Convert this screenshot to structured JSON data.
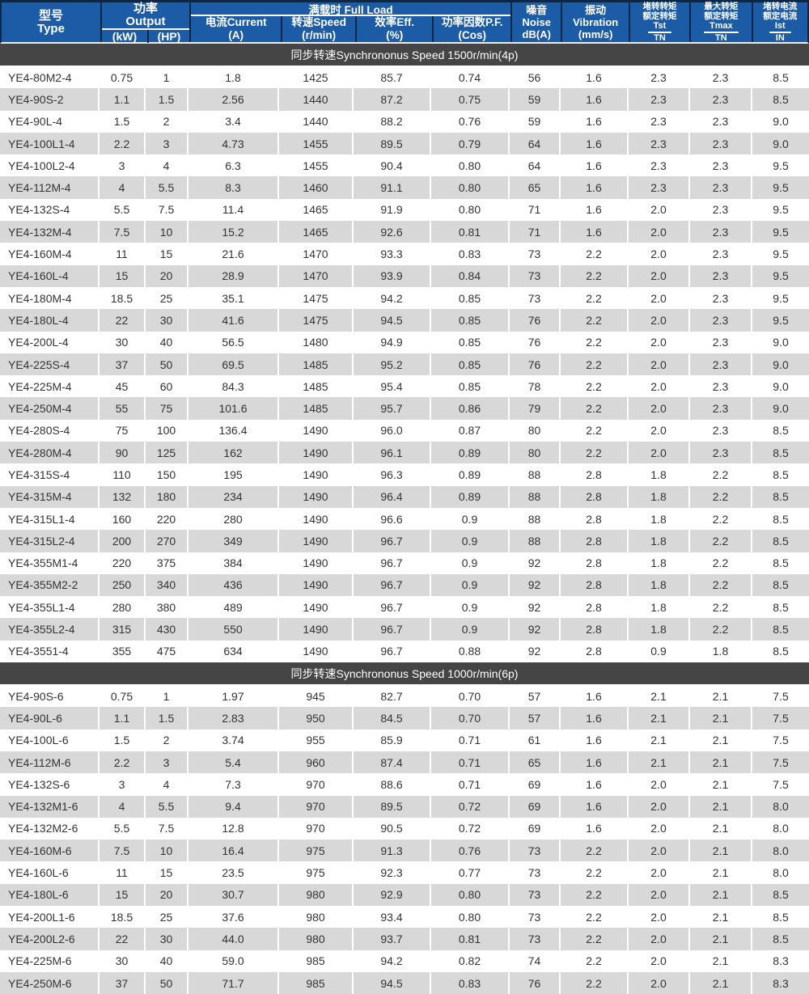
{
  "colors": {
    "header_bg": "#1c5ba5",
    "header_line": "#0b2748",
    "section_bg": "#454545",
    "stripe_gray": "#d8d8d8",
    "text": "#333333"
  },
  "header": {
    "type": {
      "line1": "型号",
      "line2": "Type"
    },
    "output": {
      "line1": "功率",
      "line2": "Output",
      "sub_kw": "(kW)",
      "sub_hp": "(HP)"
    },
    "full_load": {
      "label": "满载时 Full Load",
      "current_zh": "电流Current",
      "current_unit": "(A)",
      "speed_zh": "转速Speed",
      "speed_unit": "(r/min)",
      "eff_zh": "效率Eff.",
      "eff_unit": "(%)",
      "pf_zh": "功率因数P.F.",
      "pf_unit": "(Cos)"
    },
    "noise": {
      "line1": "噪音",
      "line2": "Noise",
      "line3": "dB(A)"
    },
    "vibration": {
      "line1": "振动",
      "line2": "Vibration",
      "line3": "(mm/s)"
    },
    "tst": {
      "line1": "堵转转矩",
      "line2": "额定转矩",
      "numerator": "Tst",
      "denominator": "TN"
    },
    "tmax": {
      "line1": "最大转矩",
      "line2": "额定转矩",
      "numerator": "Tmax",
      "denominator": "TN"
    },
    "ist": {
      "line1": "堵转电流",
      "line2": "额定电流",
      "numerator": "Ist",
      "denominator": "IN"
    }
  },
  "sections": [
    {
      "title": "同步转速Synchrononus Speed 1500r/min(4p)",
      "rows": [
        [
          "YE4-80M2-4",
          "0.75",
          "1",
          "1.8",
          "1425",
          "85.7",
          "0.74",
          "56",
          "1.6",
          "2.3",
          "2.3",
          "8.5"
        ],
        [
          "YE4-90S-2",
          "1.1",
          "1.5",
          "2.56",
          "1440",
          "87.2",
          "0.75",
          "59",
          "1.6",
          "2.3",
          "2.3",
          "8.5"
        ],
        [
          "YE4-90L-4",
          "1.5",
          "2",
          "3.4",
          "1440",
          "88.2",
          "0.76",
          "59",
          "1.6",
          "2.3",
          "2.3",
          "9.0"
        ],
        [
          "YE4-100L1-4",
          "2.2",
          "3",
          "4.73",
          "1455",
          "89.5",
          "0.79",
          "64",
          "1.6",
          "2.3",
          "2.3",
          "9.0"
        ],
        [
          "YE4-100L2-4",
          "3",
          "4",
          "6.3",
          "1455",
          "90.4",
          "0.80",
          "64",
          "1.6",
          "2.3",
          "2.3",
          "9.5"
        ],
        [
          "YE4-112M-4",
          "4",
          "5.5",
          "8.3",
          "1460",
          "91.1",
          "0.80",
          "65",
          "1.6",
          "2.3",
          "2.3",
          "9.5"
        ],
        [
          "YE4-132S-4",
          "5.5",
          "7.5",
          "11.4",
          "1465",
          "91.9",
          "0.80",
          "71",
          "1.6",
          "2.0",
          "2.3",
          "9.5"
        ],
        [
          "YE4-132M-4",
          "7.5",
          "10",
          "15.2",
          "1465",
          "92.6",
          "0.81",
          "71",
          "1.6",
          "2.0",
          "2.3",
          "9.5"
        ],
        [
          "YE4-160M-4",
          "11",
          "15",
          "21.6",
          "1470",
          "93.3",
          "0.83",
          "73",
          "2.2",
          "2.0",
          "2.3",
          "9.5"
        ],
        [
          "YE4-160L-4",
          "15",
          "20",
          "28.9",
          "1470",
          "93.9",
          "0.84",
          "73",
          "2.2",
          "2.0",
          "2.3",
          "9.5"
        ],
        [
          "YE4-180M-4",
          "18.5",
          "25",
          "35.1",
          "1475",
          "94.2",
          "0.85",
          "73",
          "2.2",
          "2.0",
          "2.3",
          "9.5"
        ],
        [
          "YE4-180L-4",
          "22",
          "30",
          "41.6",
          "1475",
          "94.5",
          "0.85",
          "76",
          "2.2",
          "2.0",
          "2.3",
          "9.5"
        ],
        [
          "YE4-200L-4",
          "30",
          "40",
          "56.5",
          "1480",
          "94.9",
          "0.85",
          "76",
          "2.2",
          "2.0",
          "2.3",
          "9.0"
        ],
        [
          "YE4-225S-4",
          "37",
          "50",
          "69.5",
          "1485",
          "95.2",
          "0.85",
          "76",
          "2.2",
          "2.0",
          "2.3",
          "9.0"
        ],
        [
          "YE4-225M-4",
          "45",
          "60",
          "84.3",
          "1485",
          "95.4",
          "0.85",
          "78",
          "2.2",
          "2.0",
          "2.3",
          "9.0"
        ],
        [
          "YE4-250M-4",
          "55",
          "75",
          "101.6",
          "1485",
          "95.7",
          "0.86",
          "79",
          "2.2",
          "2.0",
          "2.3",
          "9.0"
        ],
        [
          "YE4-280S-4",
          "75",
          "100",
          "136.4",
          "1490",
          "96.0",
          "0.87",
          "80",
          "2.2",
          "2.0",
          "2.3",
          "8.5"
        ],
        [
          "YE4-280M-4",
          "90",
          "125",
          "162",
          "1490",
          "96.1",
          "0.89",
          "80",
          "2.2",
          "2.0",
          "2.3",
          "8.5"
        ],
        [
          "YE4-315S-4",
          "110",
          "150",
          "195",
          "1490",
          "96.3",
          "0.89",
          "88",
          "2.8",
          "1.8",
          "2.2",
          "8.5"
        ],
        [
          "YE4-315M-4",
          "132",
          "180",
          "234",
          "1490",
          "96.4",
          "0.89",
          "88",
          "2.8",
          "1.8",
          "2.2",
          "8.5"
        ],
        [
          "YE4-315L1-4",
          "160",
          "220",
          "280",
          "1490",
          "96.6",
          "0.9",
          "88",
          "2.8",
          "1.8",
          "2.2",
          "8.5"
        ],
        [
          "YE4-315L2-4",
          "200",
          "270",
          "349",
          "1490",
          "96.7",
          "0.9",
          "88",
          "2.8",
          "1.8",
          "2.2",
          "8.5"
        ],
        [
          "YE4-355M1-4",
          "220",
          "375",
          "384",
          "1490",
          "96.7",
          "0.9",
          "92",
          "2.8",
          "1.8",
          "2.2",
          "8.5"
        ],
        [
          "YE4-355M2-2",
          "250",
          "340",
          "436",
          "1490",
          "96.7",
          "0.9",
          "92",
          "2.8",
          "1.8",
          "2.2",
          "8.5"
        ],
        [
          "YE4-355L1-4",
          "280",
          "380",
          "489",
          "1490",
          "96.7",
          "0.9",
          "92",
          "2.8",
          "1.8",
          "2.2",
          "8.5"
        ],
        [
          "YE4-355L2-4",
          "315",
          "430",
          "550",
          "1490",
          "96.7",
          "0.9",
          "92",
          "2.8",
          "1.8",
          "2.2",
          "8.5"
        ],
        [
          "YE4-3551-4",
          "355",
          "475",
          "634",
          "1490",
          "96.7",
          "0.88",
          "92",
          "2.8",
          "0.9",
          "1.8",
          "8.5"
        ]
      ]
    },
    {
      "title": "同步转速Synchrononus Speed 1000r/min(6p)",
      "rows": [
        [
          "YE4-90S-6",
          "0.75",
          "1",
          "1.97",
          "945",
          "82.7",
          "0.70",
          "57",
          "1.6",
          "2.1",
          "2.1",
          "7.5"
        ],
        [
          "YE4-90L-6",
          "1.1",
          "1.5",
          "2.83",
          "950",
          "84.5",
          "0.70",
          "57",
          "1.6",
          "2.1",
          "2.1",
          "7.5"
        ],
        [
          "YE4-100L-6",
          "1.5",
          "2",
          "3.74",
          "955",
          "85.9",
          "0.71",
          "61",
          "1.6",
          "2.1",
          "2.1",
          "7.5"
        ],
        [
          "YE4-112M-6",
          "2.2",
          "3",
          "5.4",
          "960",
          "87.4",
          "0.71",
          "65",
          "1.6",
          "2.1",
          "2.1",
          "7.5"
        ],
        [
          "YE4-132S-6",
          "3",
          "4",
          "7.3",
          "970",
          "88.6",
          "0.71",
          "69",
          "1.6",
          "2.0",
          "2.1",
          "7.5"
        ],
        [
          "YE4-132M1-6",
          "4",
          "5.5",
          "9.4",
          "970",
          "89.5",
          "0.72",
          "69",
          "1.6",
          "2.0",
          "2.1",
          "8.0"
        ],
        [
          "YE4-132M2-6",
          "5.5",
          "7.5",
          "12.8",
          "970",
          "90.5",
          "0.72",
          "69",
          "1.6",
          "2.0",
          "2.1",
          "8.0"
        ],
        [
          "YE4-160M-6",
          "7.5",
          "10",
          "16.4",
          "975",
          "91.3",
          "0.76",
          "73",
          "2.2",
          "2.0",
          "2.1",
          "8.0"
        ],
        [
          "YE4-160L-6",
          "11",
          "15",
          "23.5",
          "975",
          "92.3",
          "0.77",
          "73",
          "2.2",
          "2.0",
          "2.1",
          "8.0"
        ],
        [
          "YE4-180L-6",
          "15",
          "20",
          "30.7",
          "980",
          "92.9",
          "0.80",
          "73",
          "2.2",
          "2.0",
          "2.1",
          "8.5"
        ],
        [
          "YE4-200L1-6",
          "18.5",
          "25",
          "37.6",
          "980",
          "93.4",
          "0.80",
          "73",
          "2.2",
          "2.0",
          "2.1",
          "8.5"
        ],
        [
          "YE4-200L2-6",
          "22",
          "30",
          "44.0",
          "980",
          "93.7",
          "0.81",
          "73",
          "2.2",
          "2.0",
          "2.1",
          "8.5"
        ],
        [
          "YE4-225M-6",
          "30",
          "40",
          "59.0",
          "985",
          "94.2",
          "0.82",
          "74",
          "2.2",
          "2.0",
          "2.1",
          "8.3"
        ],
        [
          "YE4-250M-6",
          "37",
          "50",
          "71.7",
          "985",
          "94.5",
          "0.83",
          "76",
          "2.2",
          "2.0",
          "2.1",
          "8.3"
        ]
      ]
    }
  ]
}
